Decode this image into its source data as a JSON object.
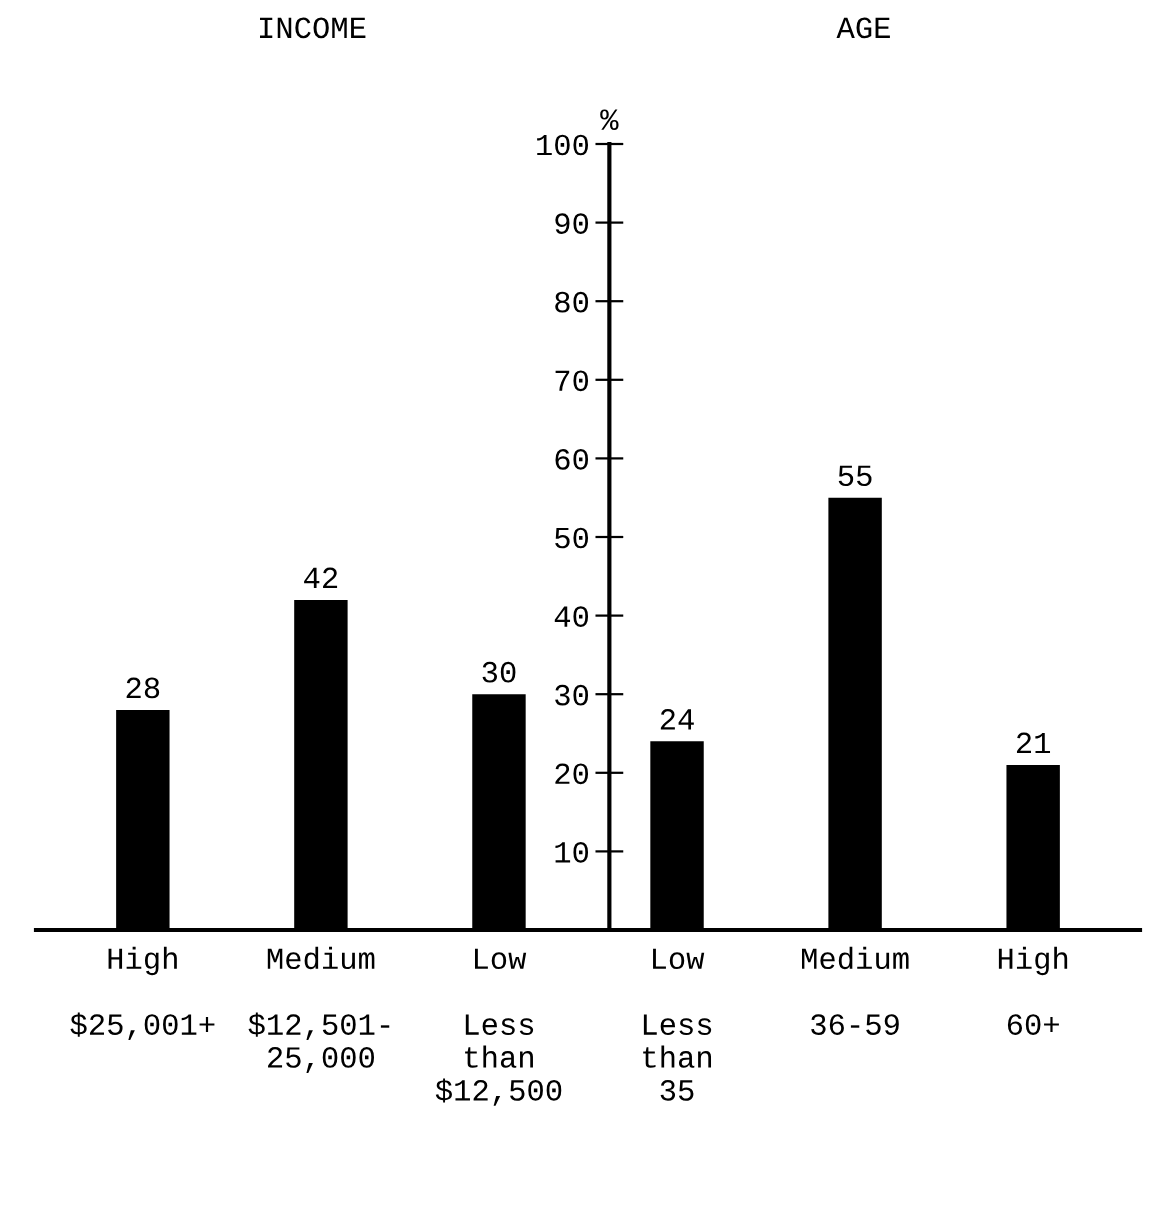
{
  "chart_data": {
    "type": "bar",
    "ylabel": "%",
    "annotations": [
      "INCOME",
      "AGE"
    ],
    "categories": [
      "High\n\n$25,001+",
      "Medium\n\n$12,501-\n25,000",
      "Low\n\nLess\nthan\n$12,500",
      "Low\n\nLess\nthan\n35",
      "Medium\n\n36-59",
      "High\n\n60+"
    ],
    "values": [
      28,
      42,
      30,
      24,
      55,
      21
    ],
    "color": "#000000",
    "ylim": [
      0,
      100
    ],
    "yticks": [
      10,
      20,
      30,
      40,
      50,
      60,
      70,
      80,
      90,
      100
    ],
    "data_labels": true
  }
}
